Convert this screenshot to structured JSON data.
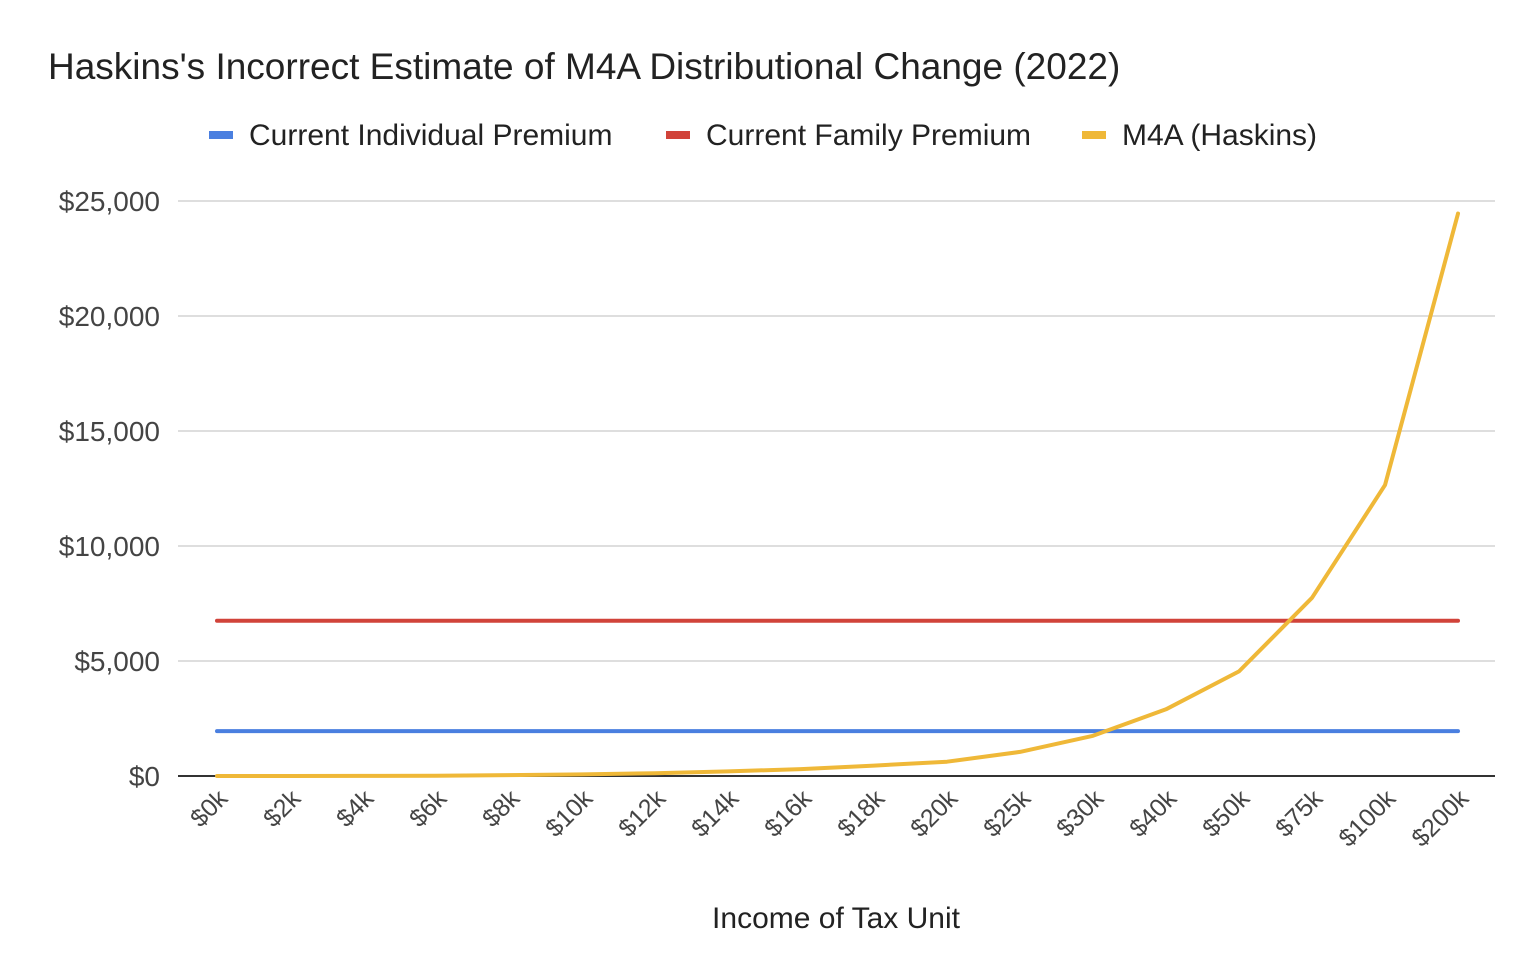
{
  "chart_data": {
    "type": "line",
    "title": "Haskins's Incorrect Estimate of M4A Distributional Change (2022)",
    "xlabel": "Income of Tax Unit",
    "ylabel": "",
    "ylim": [
      0,
      25000
    ],
    "yticks": [
      "$0",
      "$5,000",
      "$10,000",
      "$15,000",
      "$20,000",
      "$25,000"
    ],
    "ytick_values": [
      0,
      5000,
      10000,
      15000,
      20000,
      25000
    ],
    "grid": true,
    "legend_position": "top",
    "categories": [
      "$0k",
      "$2k",
      "$4k",
      "$6k",
      "$8k",
      "$10k",
      "$12k",
      "$14k",
      "$16k",
      "$18k",
      "$20k",
      "$25k",
      "$30k",
      "$40k",
      "$50k",
      "$75k",
      "$100k",
      "$200k"
    ],
    "series": [
      {
        "name": "Current Individual Premium",
        "color": "#4a7fe0",
        "values": [
          1950,
          1950,
          1950,
          1950,
          1950,
          1950,
          1950,
          1950,
          1950,
          1950,
          1950,
          1950,
          1950,
          1950,
          1950,
          1950,
          1950,
          1950
        ]
      },
      {
        "name": "Current Family Premium",
        "color": "#d1433a",
        "values": [
          6750,
          6750,
          6750,
          6750,
          6750,
          6750,
          6750,
          6750,
          6750,
          6750,
          6750,
          6750,
          6750,
          6750,
          6750,
          6750,
          6750,
          6750
        ]
      },
      {
        "name": "M4A (Haskins)",
        "color": "#efb838",
        "values": [
          0,
          0,
          5,
          15,
          40,
          70,
          120,
          200,
          300,
          450,
          620,
          1050,
          1750,
          2900,
          4550,
          7750,
          12650,
          24450
        ]
      }
    ]
  }
}
